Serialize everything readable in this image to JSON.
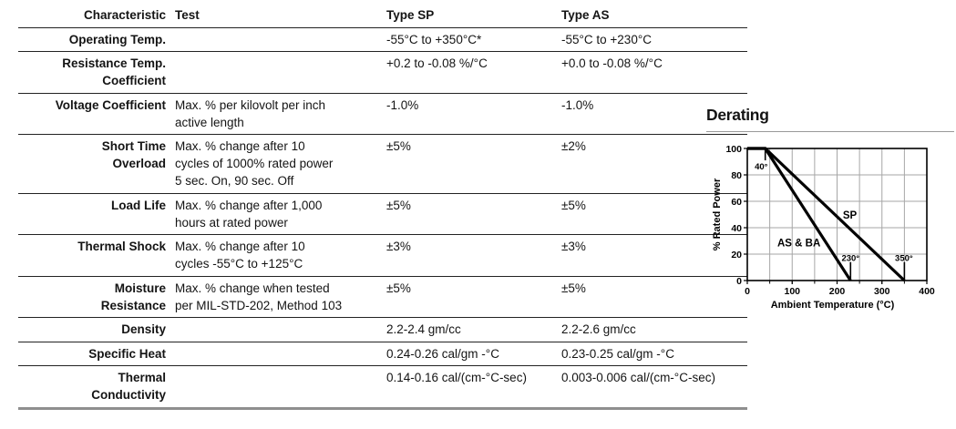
{
  "table": {
    "headers": {
      "characteristic": "Characteristic",
      "test": "Test",
      "type_sp": "Type SP",
      "type_as": "Type AS"
    },
    "rows": [
      {
        "characteristic": "Operating Temp.",
        "test": "",
        "sp": "-55°C to +350°C*",
        "as": "-55°C to +230°C"
      },
      {
        "characteristic": "Resistance Temp.\nCoefficient",
        "test": "",
        "sp": "+0.2 to -0.08 %/°C",
        "as": "+0.0 to -0.08 %/°C"
      },
      {
        "characteristic": "Voltage Coefficient",
        "test": "Max. % per kilovolt per inch\nactive length",
        "sp": "-1.0%",
        "as": "-1.0%"
      },
      {
        "characteristic": "Short Time\nOverload",
        "test": "Max. % change after 10\ncycles of 1000% rated power\n5 sec. On, 90 sec. Off",
        "sp": "±5%",
        "as": "±2%"
      },
      {
        "characteristic": "Load Life",
        "test": "Max. % change after 1,000\nhours at rated power",
        "sp": "±5%",
        "as": "±5%"
      },
      {
        "characteristic": "Thermal Shock",
        "test": "Max. % change after 10\ncycles -55°C to +125°C",
        "sp": "±3%",
        "as": "±3%"
      },
      {
        "characteristic": "Moisture\nResistance",
        "test": "Max. % change when tested\nper MIL-STD-202, Method 103",
        "sp": "±5%",
        "as": "±5%"
      },
      {
        "characteristic": "Density",
        "test": "",
        "sp": "2.2-2.4 gm/cc",
        "as": "2.2-2.6 gm/cc"
      },
      {
        "characteristic": "Specific Heat",
        "test": "",
        "sp": "0.24-0.26 cal/gm -°C",
        "as": "0.23-0.25 cal/gm -°C"
      },
      {
        "characteristic": "Thermal\nConductivity",
        "test": "",
        "sp": "0.14-0.16 cal/(cm-°C-sec)",
        "as": "0.003-0.006 cal/(cm-°C-sec)"
      }
    ]
  },
  "derating": {
    "title": "Derating"
  },
  "chart_data": {
    "type": "line",
    "title": "Derating",
    "xlabel": "Ambient Temperature (°C)",
    "ylabel": "% Rated Power",
    "xlim": [
      0,
      400
    ],
    "ylim": [
      0,
      100
    ],
    "xticks": [
      0,
      100,
      200,
      300,
      400
    ],
    "yticks": [
      0,
      20,
      40,
      60,
      80,
      100
    ],
    "grid_step_x": 50,
    "grid_step_y": 20,
    "grid": true,
    "legend_position": "on-line-labels",
    "colors": {
      "line": "#000000",
      "grid": "#a6a6a6",
      "frame": "#000000"
    },
    "series": [
      {
        "name": "SP",
        "points": [
          [
            0,
            100
          ],
          [
            40,
            100
          ],
          [
            350,
            0
          ]
        ]
      },
      {
        "name": "AS & BA",
        "points": [
          [
            0,
            100
          ],
          [
            40,
            100
          ],
          [
            230,
            0
          ]
        ]
      }
    ],
    "series_labels": [
      {
        "text": "SP",
        "at": [
          213,
          47
        ],
        "anchor": "start"
      },
      {
        "text": "AS & BA",
        "at": [
          67,
          26
        ],
        "anchor": "start"
      }
    ],
    "annotations": [
      {
        "text": "40°",
        "tick": [
          [
            40,
            100
          ],
          [
            40,
            91
          ]
        ],
        "label": [
          31,
          84
        ]
      },
      {
        "text": "230°",
        "tick": [
          [
            230,
            0
          ],
          [
            230,
            14
          ]
        ],
        "label": [
          230,
          15
        ]
      },
      {
        "text": "350°",
        "tick": [
          [
            350,
            0
          ],
          [
            350,
            14
          ]
        ],
        "label": [
          349,
          15
        ]
      }
    ]
  }
}
